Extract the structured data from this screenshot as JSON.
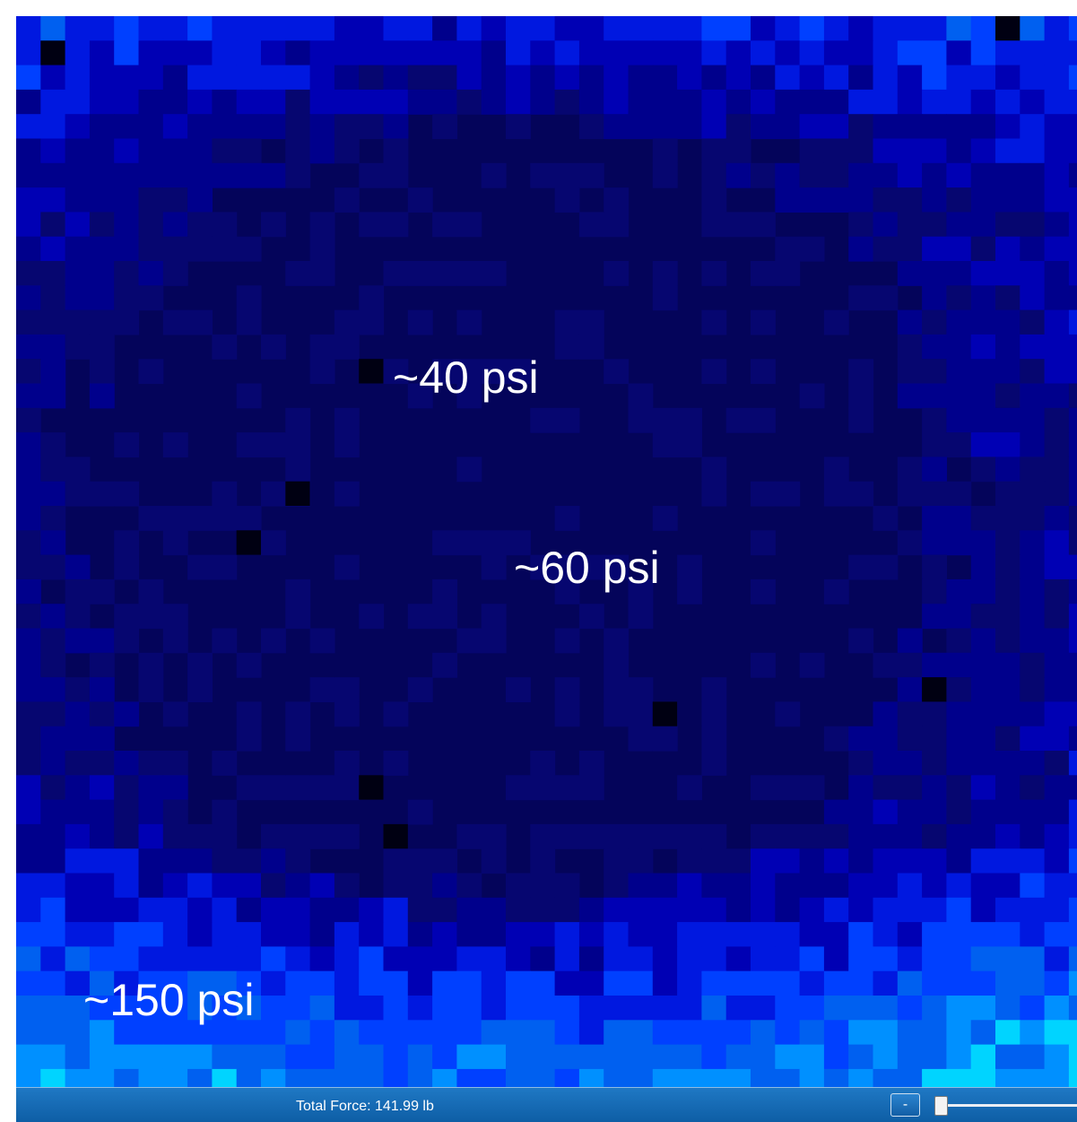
{
  "chart_data": {
    "type": "heatmap",
    "annotations": [
      "~40 psi",
      "~60 psi",
      "~150 psi"
    ],
    "palette": {
      "background": "#04045a",
      "low": "#000030",
      "mid": "#0000a0",
      "high": "#0050ff",
      "peak": "#00d4ff"
    }
  },
  "status": {
    "total_force": "Total Force: 141.99 lb",
    "zoom_out_label": "-"
  },
  "colors": {
    "status_bar": "#1268b3",
    "label_text": "#ffffff"
  }
}
